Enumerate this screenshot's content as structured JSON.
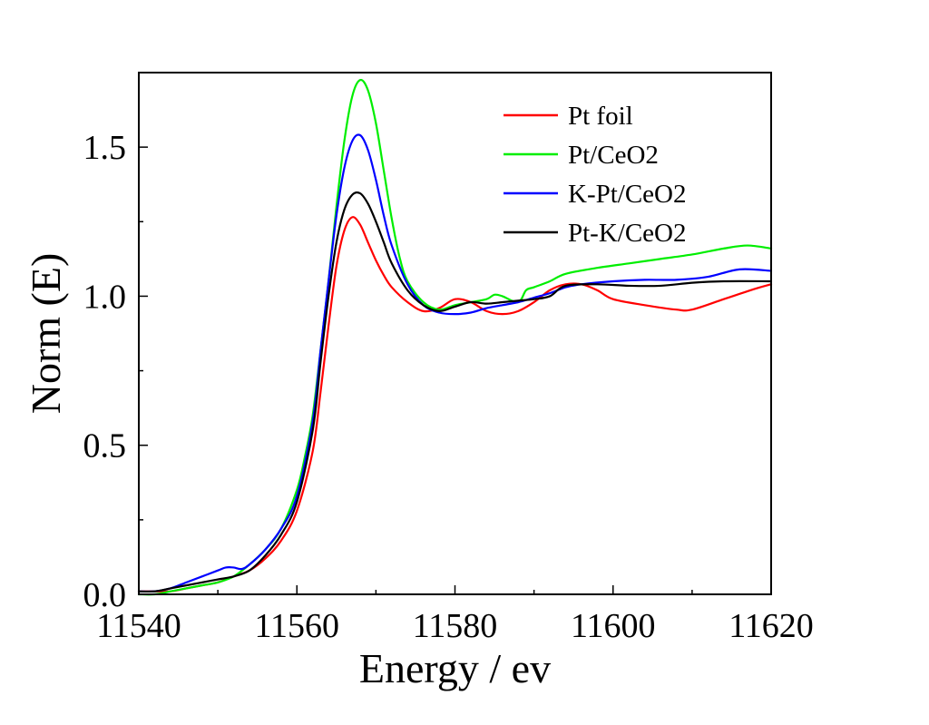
{
  "chart_data": {
    "type": "line",
    "title": "",
    "xlabel": "Energy / ev",
    "ylabel": "Norm (E)",
    "xlim": [
      11540,
      11620
    ],
    "ylim": [
      0,
      1.75
    ],
    "xticks": [
      11540,
      11560,
      11580,
      11600,
      11620
    ],
    "xtick_labels": [
      "11540",
      "11560",
      "11580",
      "11600",
      "11620"
    ],
    "yticks": [
      0,
      0.5,
      1.0,
      1.5
    ],
    "ytick_labels": [
      "0.0",
      "0.5",
      "1.0",
      "1.5"
    ],
    "grid": false,
    "legend_position": "top-right",
    "series": [
      {
        "name": "Pt foil",
        "color": "#ff0000",
        "x": [
          11540,
          11542,
          11544,
          11546,
          11548,
          11550,
          11552,
          11554,
          11556,
          11558,
          11560,
          11562,
          11563,
          11564,
          11565,
          11566,
          11567,
          11568,
          11569,
          11570,
          11571,
          11572,
          11574,
          11576,
          11578,
          11580,
          11582,
          11584,
          11586,
          11588,
          11590,
          11592,
          11594,
          11596,
          11598,
          11600,
          11604,
          11608,
          11610,
          11614,
          11618,
          11620
        ],
        "y": [
          0.01,
          0.01,
          0.01,
          0.02,
          0.03,
          0.04,
          0.06,
          0.08,
          0.12,
          0.18,
          0.28,
          0.48,
          0.68,
          0.9,
          1.1,
          1.22,
          1.265,
          1.24,
          1.18,
          1.12,
          1.07,
          1.03,
          0.98,
          0.95,
          0.96,
          0.99,
          0.98,
          0.95,
          0.94,
          0.95,
          0.98,
          1.02,
          1.04,
          1.04,
          1.02,
          0.99,
          0.97,
          0.955,
          0.955,
          0.99,
          1.025,
          1.04
        ]
      },
      {
        "name": "Pt/CeO2",
        "color": "#00ee00",
        "x": [
          11540,
          11542,
          11544,
          11546,
          11548,
          11550,
          11552,
          11554,
          11556,
          11558,
          11560,
          11561,
          11562,
          11563,
          11564,
          11565,
          11566,
          11567,
          11568,
          11569,
          11570,
          11571,
          11572,
          11573,
          11574,
          11576,
          11578,
          11580,
          11582,
          11584,
          11585,
          11586,
          11588,
          11589,
          11590,
          11592,
          11594,
          11598,
          11602,
          11606,
          11610,
          11614,
          11617,
          11620
        ],
        "y": [
          0.0,
          0.0,
          0.01,
          0.02,
          0.03,
          0.04,
          0.06,
          0.1,
          0.15,
          0.22,
          0.35,
          0.46,
          0.6,
          0.82,
          1.05,
          1.3,
          1.52,
          1.67,
          1.725,
          1.69,
          1.58,
          1.42,
          1.26,
          1.13,
          1.05,
          0.98,
          0.955,
          0.97,
          0.98,
          0.99,
          1.005,
          1.0,
          0.98,
          1.02,
          1.03,
          1.05,
          1.075,
          1.095,
          1.11,
          1.125,
          1.14,
          1.16,
          1.17,
          1.16
        ]
      },
      {
        "name": "K-Pt/CeO2",
        "color": "#0000ff",
        "x": [
          11540,
          11542,
          11544,
          11546,
          11548,
          11550,
          11551,
          11552,
          11553,
          11554,
          11556,
          11558,
          11560,
          11562,
          11563,
          11564,
          11565,
          11566,
          11567,
          11568,
          11569,
          11570,
          11571,
          11572,
          11574,
          11576,
          11578,
          11580,
          11582,
          11584,
          11586,
          11588,
          11590,
          11592,
          11594,
          11596,
          11600,
          11604,
          11608,
          11612,
          11616,
          11620
        ],
        "y": [
          0.01,
          0.01,
          0.02,
          0.04,
          0.06,
          0.08,
          0.09,
          0.09,
          0.085,
          0.1,
          0.15,
          0.22,
          0.33,
          0.58,
          0.82,
          1.05,
          1.27,
          1.43,
          1.52,
          1.54,
          1.49,
          1.39,
          1.27,
          1.17,
          1.04,
          0.97,
          0.945,
          0.94,
          0.945,
          0.96,
          0.97,
          0.98,
          0.995,
          1.01,
          1.03,
          1.04,
          1.05,
          1.055,
          1.055,
          1.065,
          1.09,
          1.085
        ]
      },
      {
        "name": "Pt-K/CeO2",
        "color": "#000000",
        "x": [
          11540,
          11542,
          11544,
          11546,
          11548,
          11550,
          11552,
          11554,
          11556,
          11558,
          11560,
          11562,
          11563,
          11564,
          11565,
          11566,
          11567,
          11568,
          11569,
          11570,
          11571,
          11572,
          11574,
          11576,
          11578,
          11580,
          11582,
          11584,
          11586,
          11588,
          11590,
          11592,
          11594,
          11598,
          11602,
          11606,
          11610,
          11614,
          11620
        ],
        "y": [
          0.01,
          0.01,
          0.02,
          0.03,
          0.04,
          0.05,
          0.06,
          0.08,
          0.13,
          0.2,
          0.31,
          0.55,
          0.78,
          1.0,
          1.18,
          1.29,
          1.34,
          1.345,
          1.31,
          1.25,
          1.18,
          1.11,
          1.02,
          0.97,
          0.95,
          0.965,
          0.98,
          0.975,
          0.98,
          0.985,
          0.99,
          1.0,
          1.035,
          1.04,
          1.035,
          1.035,
          1.045,
          1.05,
          1.05
        ]
      }
    ]
  }
}
